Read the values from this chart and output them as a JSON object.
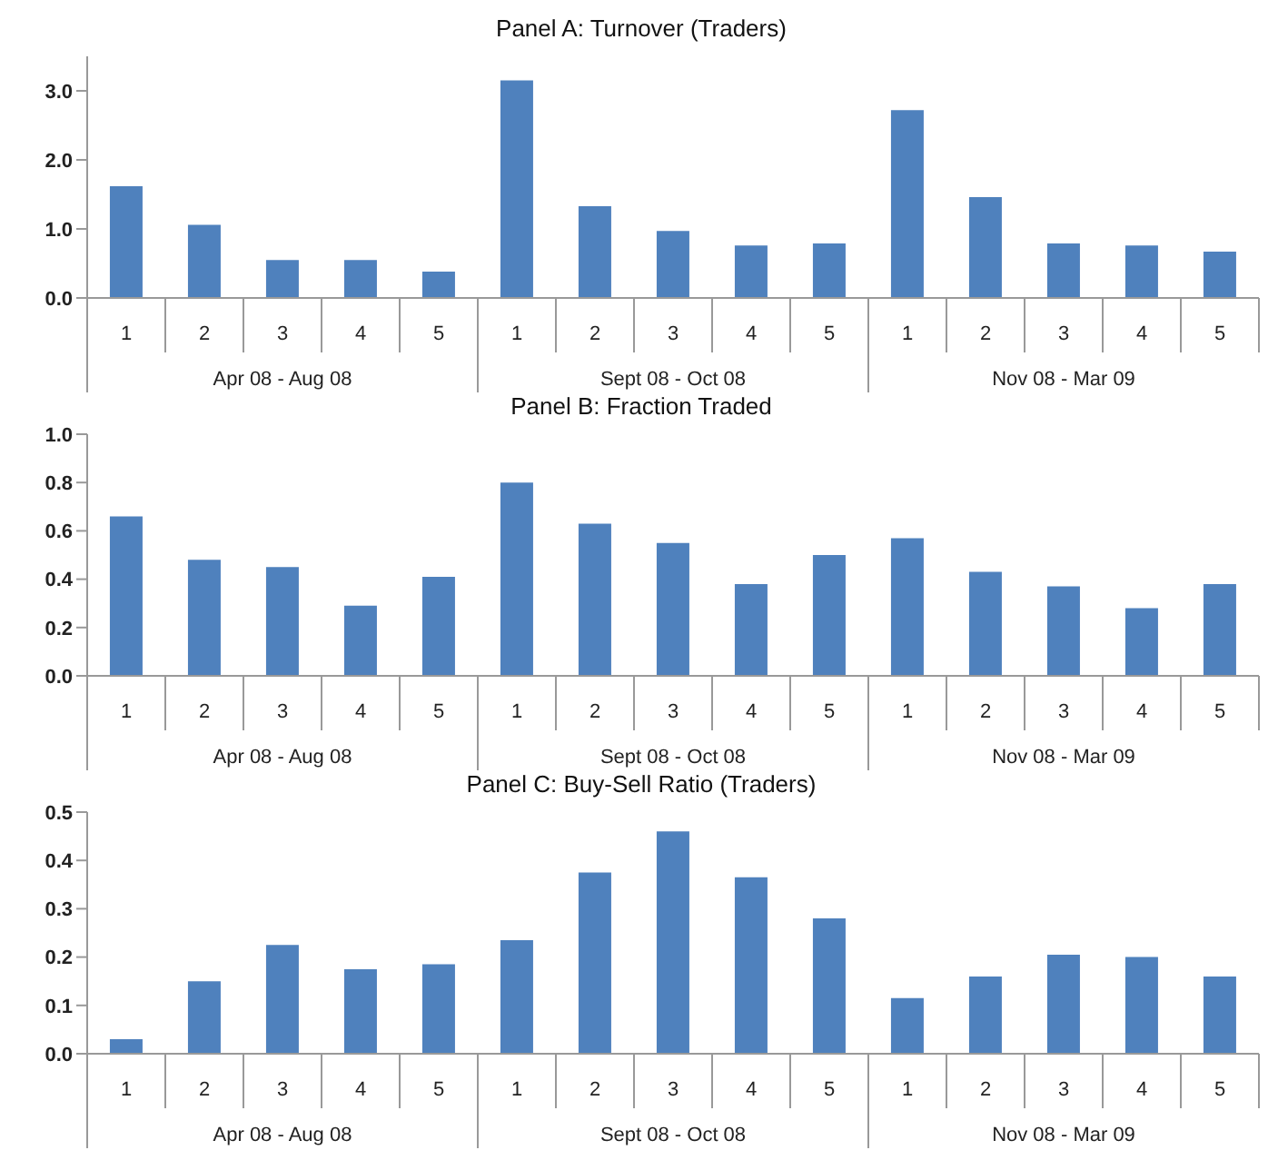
{
  "chart_data": [
    {
      "type": "bar",
      "title": "Panel A: Turnover (Traders)",
      "categories": [
        "1",
        "2",
        "3",
        "4",
        "5",
        "1",
        "2",
        "3",
        "4",
        "5",
        "1",
        "2",
        "3",
        "4",
        "5"
      ],
      "values": [
        1.62,
        1.06,
        0.55,
        0.55,
        0.38,
        3.15,
        1.33,
        0.97,
        0.76,
        0.79,
        2.72,
        1.46,
        0.79,
        0.76,
        0.67
      ],
      "color": "#4f81bd",
      "ylim": [
        0,
        3.5
      ],
      "yticks": [
        {
          "value": 0,
          "label": "0.0"
        },
        {
          "value": 1,
          "label": "1.0"
        },
        {
          "value": 2,
          "label": "2.0"
        },
        {
          "value": 3,
          "label": "3.0"
        }
      ],
      "grid": false,
      "legend": false,
      "annotations": [
        "Apr 08 - Aug 08",
        "Sept 08 - Oct 08",
        "Nov 08 - Mar 09"
      ]
    },
    {
      "type": "bar",
      "title": "Panel B: Fraction Traded",
      "categories": [
        "1",
        "2",
        "3",
        "4",
        "5",
        "1",
        "2",
        "3",
        "4",
        "5",
        "1",
        "2",
        "3",
        "4",
        "5"
      ],
      "values": [
        0.66,
        0.48,
        0.45,
        0.29,
        0.41,
        0.8,
        0.63,
        0.55,
        0.38,
        0.5,
        0.57,
        0.43,
        0.37,
        0.28,
        0.38
      ],
      "color": "#4f81bd",
      "ylim": [
        0,
        1
      ],
      "yticks": [
        {
          "value": 0,
          "label": "0.0"
        },
        {
          "value": 0.2,
          "label": "0.2"
        },
        {
          "value": 0.4,
          "label": "0.4"
        },
        {
          "value": 0.6,
          "label": "0.6"
        },
        {
          "value": 0.8,
          "label": "0.8"
        },
        {
          "value": 1,
          "label": "1.0"
        }
      ],
      "grid": false,
      "legend": false,
      "annotations": [
        "Apr 08 - Aug 08",
        "Sept 08 - Oct 08",
        "Nov 08 - Mar 09"
      ]
    },
    {
      "type": "bar",
      "title": "Panel C: Buy-Sell Ratio (Traders)",
      "categories": [
        "1",
        "2",
        "3",
        "4",
        "5",
        "1",
        "2",
        "3",
        "4",
        "5",
        "1",
        "2",
        "3",
        "4",
        "5"
      ],
      "values": [
        0.03,
        0.15,
        0.225,
        0.175,
        0.185,
        0.235,
        0.375,
        0.46,
        0.365,
        0.28,
        0.115,
        0.16,
        0.205,
        0.2,
        0.16
      ],
      "color": "#4f81bd",
      "ylim": [
        0,
        0.5
      ],
      "yticks": [
        {
          "value": 0,
          "label": "0.0"
        },
        {
          "value": 0.1,
          "label": "0.1"
        },
        {
          "value": 0.2,
          "label": "0.2"
        },
        {
          "value": 0.3,
          "label": "0.3"
        },
        {
          "value": 0.4,
          "label": "0.4"
        },
        {
          "value": 0.5,
          "label": "0.5"
        }
      ],
      "grid": false,
      "legend": false,
      "annotations": [
        "Apr 08 - Aug 08",
        "Sept 08 - Oct 08",
        "Nov 08 - Mar 09"
      ]
    }
  ]
}
